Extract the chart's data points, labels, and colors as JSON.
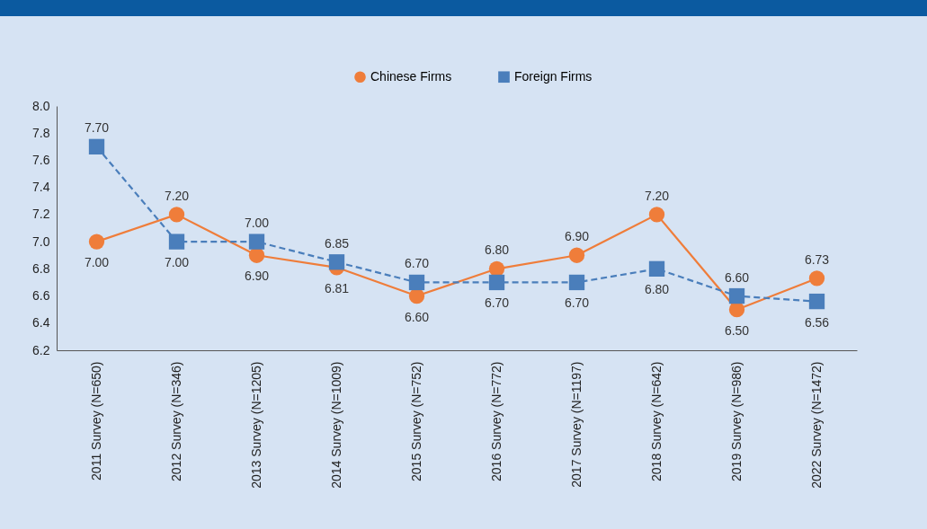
{
  "chart_data": {
    "type": "line",
    "categories": [
      "2011 Survey (N=650)",
      "2012 Survey (N=346)",
      "2013 Survey (N=1205)",
      "2014 Survey (N=1009)",
      "2015 Survey (N=752)",
      "2016 Survey (N=772)",
      "2017 Survey (N=1197)",
      "2018 Survey (N=642)",
      "2019 Survey (N=986)",
      "2022 Survey (N=1472)"
    ],
    "series": [
      {
        "name": "Chinese Firms",
        "color": "#ef7d3a",
        "marker": "circle",
        "line_style": "solid",
        "values": [
          7.0,
          7.2,
          6.9,
          6.81,
          6.6,
          6.8,
          6.9,
          7.2,
          6.5,
          6.73
        ],
        "value_labels": [
          "7.00",
          "7.20",
          "6.90",
          "6.81",
          "6.60",
          "6.80",
          "6.90",
          "7.20",
          "6.50",
          "6.73"
        ]
      },
      {
        "name": "Foreign Firms",
        "color": "#4a7ebb",
        "marker": "square",
        "line_style": "dashed",
        "values": [
          7.7,
          7.0,
          7.0,
          6.85,
          6.7,
          6.7,
          6.7,
          6.8,
          6.6,
          6.56
        ],
        "value_labels": [
          "7.70",
          "7.00",
          "7.00",
          "6.85",
          "6.70",
          "6.70",
          "6.70",
          "6.80",
          "6.60",
          "6.56"
        ]
      }
    ],
    "ylim": [
      6.2,
      8.0
    ],
    "yticks": [
      6.2,
      6.4,
      6.6,
      6.8,
      {
        "value": 7.0,
        "label": "7.0"
      },
      7.2,
      7.4,
      7.6,
      7.8,
      {
        "value": 8.0,
        "label": "8.0"
      }
    ],
    "grid": false,
    "legend": "top"
  }
}
